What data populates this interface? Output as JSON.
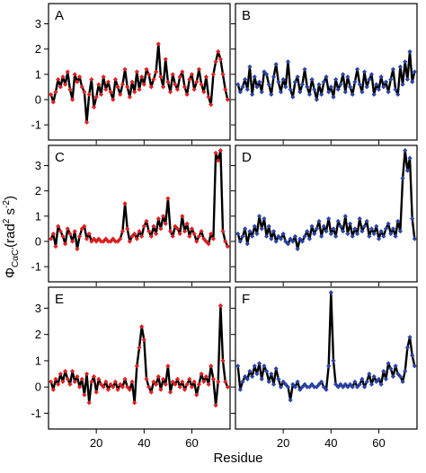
{
  "chart_data": [
    {
      "panel": "A",
      "type": "line",
      "xlabel": "Residue",
      "ylabel": "Φ",
      "ylabel_sub": "CαC′",
      "ylabel_unit_prefix": "(rad",
      "ylabel_unit_exp1": "2",
      "ylabel_unit_mid": " s",
      "ylabel_unit_exp2": "-2",
      "ylabel_unit_suffix": ")",
      "xlim": [
        0,
        76
      ],
      "ylim": [
        -1.6,
        3.8
      ],
      "xticks": [
        20,
        40,
        60
      ],
      "yticks": [
        -1,
        0,
        1,
        2,
        3
      ],
      "marker_color": "#e02020",
      "line_color": "#000000",
      "x": [
        1,
        2,
        3,
        4,
        5,
        6,
        7,
        8,
        9,
        10,
        11,
        12,
        13,
        14,
        15,
        16,
        17,
        18,
        19,
        20,
        21,
        22,
        23,
        24,
        25,
        26,
        27,
        28,
        29,
        30,
        31,
        32,
        33,
        34,
        35,
        36,
        37,
        38,
        39,
        40,
        41,
        42,
        43,
        44,
        45,
        46,
        47,
        48,
        49,
        50,
        51,
        52,
        53,
        54,
        55,
        56,
        57,
        58,
        59,
        60,
        61,
        62,
        63,
        64,
        65,
        66,
        67,
        68,
        69,
        70,
        71,
        72,
        73,
        74,
        75
      ],
      "y": [
        0.2,
        -0.1,
        0.3,
        0.8,
        0.5,
        0.9,
        0.6,
        1.1,
        0.4,
        0.0,
        1.0,
        0.7,
        0.9,
        0.5,
        0.3,
        -0.9,
        0.2,
        0.8,
        -0.3,
        0.1,
        0.6,
        0.2,
        0.9,
        0.4,
        0.7,
        0.3,
        0.0,
        0.8,
        0.5,
        0.2,
        0.6,
        1.2,
        0.5,
        0.1,
        0.7,
        0.3,
        1.1,
        0.4,
        0.9,
        0.6,
        1.2,
        1.0,
        0.5,
        0.8,
        1.1,
        2.2,
        0.9,
        0.5,
        1.6,
        0.7,
        0.3,
        1.0,
        0.6,
        0.4,
        0.9,
        1.1,
        0.5,
        0.2,
        0.8,
        1.0,
        0.4,
        0.7,
        1.2,
        0.6,
        0.3,
        0.9,
        0.1,
        -0.2,
        1.0,
        1.5,
        1.9,
        1.6,
        1.0,
        0.4,
        0.0
      ]
    },
    {
      "panel": "B",
      "type": "line",
      "xlim": [
        0,
        76
      ],
      "ylim": [
        -1.6,
        3.8
      ],
      "xticks": [
        20,
        40,
        60
      ],
      "yticks": [
        -1,
        0,
        1,
        2,
        3
      ],
      "marker_color": "#2a44a8",
      "line_color": "#000000",
      "x": [
        1,
        2,
        3,
        4,
        5,
        6,
        7,
        8,
        9,
        10,
        11,
        12,
        13,
        14,
        15,
        16,
        17,
        18,
        19,
        20,
        21,
        22,
        23,
        24,
        25,
        26,
        27,
        28,
        29,
        30,
        31,
        32,
        33,
        34,
        35,
        36,
        37,
        38,
        39,
        40,
        41,
        42,
        43,
        44,
        45,
        46,
        47,
        48,
        49,
        50,
        51,
        52,
        53,
        54,
        55,
        56,
        57,
        58,
        59,
        60,
        61,
        62,
        63,
        64,
        65,
        66,
        67,
        68,
        69,
        70,
        71,
        72,
        73,
        74,
        75
      ],
      "y": [
        0.6,
        0.3,
        0.5,
        0.8,
        0.4,
        1.3,
        0.2,
        0.9,
        0.5,
        0.7,
        0.3,
        1.1,
        1.0,
        0.6,
        0.2,
        0.9,
        1.4,
        0.7,
        0.3,
        0.8,
        0.5,
        1.5,
        0.4,
        0.1,
        0.7,
        0.9,
        0.3,
        0.6,
        1.2,
        0.5,
        0.2,
        0.8,
        0.4,
        0.0,
        0.6,
        0.2,
        0.7,
        0.9,
        0.3,
        0.5,
        0.1,
        0.8,
        0.4,
        0.6,
        1.0,
        0.3,
        0.9,
        0.5,
        0.2,
        0.7,
        1.2,
        0.6,
        0.3,
        1.1,
        0.5,
        0.8,
        1.0,
        0.2,
        0.6,
        0.4,
        0.9,
        0.5,
        0.7,
        0.3,
        0.8,
        1.2,
        0.4,
        0.2,
        1.3,
        0.6,
        1.5,
        0.8,
        1.9,
        0.7,
        1.1
      ]
    },
    {
      "panel": "C",
      "type": "line",
      "xlim": [
        0,
        76
      ],
      "ylim": [
        -1.6,
        3.8
      ],
      "xticks": [
        20,
        40,
        60
      ],
      "yticks": [
        -1,
        0,
        1,
        2,
        3
      ],
      "marker_color": "#e02020",
      "line_color": "#000000",
      "x": [
        1,
        2,
        3,
        4,
        5,
        6,
        7,
        8,
        9,
        10,
        11,
        12,
        13,
        14,
        15,
        16,
        17,
        18,
        19,
        20,
        21,
        22,
        23,
        24,
        25,
        26,
        27,
        28,
        29,
        30,
        31,
        32,
        33,
        34,
        35,
        36,
        37,
        38,
        39,
        40,
        41,
        42,
        43,
        44,
        45,
        46,
        47,
        48,
        49,
        50,
        51,
        52,
        53,
        54,
        55,
        56,
        57,
        58,
        59,
        60,
        61,
        62,
        63,
        64,
        65,
        66,
        67,
        68,
        69,
        70,
        71,
        72,
        73,
        74,
        75
      ],
      "y": [
        0.1,
        0.3,
        -0.2,
        0.6,
        0.4,
        0.2,
        -0.1,
        0.5,
        0.3,
        0.0,
        0.4,
        -0.3,
        0.2,
        0.5,
        0.6,
        0.1,
        0.3,
        0.0,
        0.1,
        0.0,
        0.1,
        0.0,
        0.0,
        0.1,
        0.0,
        0.0,
        0.1,
        0.0,
        0.0,
        0.1,
        0.4,
        1.5,
        0.5,
        0.0,
        0.2,
        0.3,
        0.1,
        0.4,
        0.2,
        0.6,
        0.8,
        0.4,
        0.2,
        0.6,
        0.3,
        0.9,
        0.5,
        1.0,
        0.7,
        1.7,
        0.4,
        0.2,
        0.6,
        0.5,
        0.3,
        1.0,
        0.4,
        0.7,
        0.2,
        0.5,
        0.3,
        0.0,
        0.2,
        0.4,
        0.1,
        0.0,
        -0.1,
        0.3,
        0.1,
        3.5,
        3.2,
        3.6,
        0.4,
        0.0,
        -0.2
      ]
    },
    {
      "panel": "D",
      "type": "line",
      "xlim": [
        0,
        76
      ],
      "ylim": [
        -1.6,
        3.8
      ],
      "xticks": [
        20,
        40,
        60
      ],
      "yticks": [
        -1,
        0,
        1,
        2,
        3
      ],
      "marker_color": "#2a44a8",
      "line_color": "#000000",
      "x": [
        1,
        2,
        3,
        4,
        5,
        6,
        7,
        8,
        9,
        10,
        11,
        12,
        13,
        14,
        15,
        16,
        17,
        18,
        19,
        20,
        21,
        22,
        23,
        24,
        25,
        26,
        27,
        28,
        29,
        30,
        31,
        32,
        33,
        34,
        35,
        36,
        37,
        38,
        39,
        40,
        41,
        42,
        43,
        44,
        45,
        46,
        47,
        48,
        49,
        50,
        51,
        52,
        53,
        54,
        55,
        56,
        57,
        58,
        59,
        60,
        61,
        62,
        63,
        64,
        65,
        66,
        67,
        68,
        69,
        70,
        71,
        72,
        73,
        74,
        75
      ],
      "y": [
        0.3,
        0.0,
        0.2,
        0.5,
        -0.1,
        0.4,
        0.2,
        0.6,
        0.3,
        1.0,
        0.5,
        0.9,
        0.2,
        0.6,
        0.1,
        0.4,
        0.0,
        0.2,
        0.1,
        0.3,
        0.0,
        -0.1,
        0.1,
        0.0,
        0.2,
        -0.3,
        0.1,
        0.0,
        0.2,
        0.4,
        0.1,
        0.6,
        0.3,
        0.5,
        0.8,
        0.2,
        0.6,
        0.4,
        0.9,
        0.3,
        0.5,
        0.2,
        0.8,
        0.6,
        0.4,
        1.0,
        0.3,
        0.7,
        0.2,
        0.5,
        0.3,
        0.9,
        0.4,
        0.6,
        0.8,
        0.2,
        0.5,
        0.3,
        0.6,
        0.1,
        0.4,
        0.2,
        0.5,
        0.7,
        0.3,
        0.5,
        0.2,
        0.8,
        0.4,
        2.5,
        3.6,
        2.8,
        3.3,
        0.9,
        0.1
      ]
    },
    {
      "panel": "E",
      "type": "line",
      "xlim": [
        0,
        76
      ],
      "ylim": [
        -1.6,
        3.8
      ],
      "xticks": [
        20,
        40,
        60
      ],
      "yticks": [
        -1,
        0,
        1,
        2,
        3
      ],
      "marker_color": "#e02020",
      "line_color": "#000000",
      "x": [
        1,
        2,
        3,
        4,
        5,
        6,
        7,
        8,
        9,
        10,
        11,
        12,
        13,
        14,
        15,
        16,
        17,
        18,
        19,
        20,
        21,
        22,
        23,
        24,
        25,
        26,
        27,
        28,
        29,
        30,
        31,
        32,
        33,
        34,
        35,
        36,
        37,
        38,
        39,
        40,
        41,
        42,
        43,
        44,
        45,
        46,
        47,
        48,
        49,
        50,
        51,
        52,
        53,
        54,
        55,
        56,
        57,
        58,
        59,
        60,
        61,
        62,
        63,
        64,
        65,
        66,
        67,
        68,
        69,
        70,
        71,
        72,
        73,
        74,
        75
      ],
      "y": [
        0.2,
        -0.1,
        0.3,
        0.1,
        0.5,
        0.2,
        0.6,
        0.3,
        0.1,
        0.6,
        0.2,
        0.4,
        0.0,
        0.3,
        -0.3,
        0.5,
        -0.6,
        0.2,
        0.4,
        -0.2,
        0.3,
        0.1,
        0.0,
        0.2,
        -0.1,
        0.1,
        0.0,
        0.2,
        -0.1,
        0.1,
        0.0,
        0.3,
        0.0,
        -0.1,
        0.2,
        -0.6,
        0.8,
        1.5,
        2.3,
        1.8,
        0.3,
        0.0,
        -0.2,
        0.2,
        0.1,
        0.4,
        -0.1,
        0.3,
        0.1,
        0.8,
        -0.2,
        0.2,
        0.1,
        0.3,
        0.0,
        0.2,
        -0.1,
        0.1,
        0.3,
        0.0,
        0.2,
        -0.3,
        0.1,
        0.5,
        0.2,
        0.4,
        0.1,
        0.8,
        0.3,
        -0.7,
        0.2,
        3.1,
        1.0,
        0.2,
        0.0
      ]
    },
    {
      "panel": "F",
      "type": "line",
      "xlim": [
        0,
        76
      ],
      "ylim": [
        -1.6,
        3.8
      ],
      "xticks": [
        20,
        40,
        60
      ],
      "yticks": [
        -1,
        0,
        1,
        2,
        3
      ],
      "marker_color": "#2a44a8",
      "line_color": "#000000",
      "x": [
        1,
        2,
        3,
        4,
        5,
        6,
        7,
        8,
        9,
        10,
        11,
        12,
        13,
        14,
        15,
        16,
        17,
        18,
        19,
        20,
        21,
        22,
        23,
        24,
        25,
        26,
        27,
        28,
        29,
        30,
        31,
        32,
        33,
        34,
        35,
        36,
        37,
        38,
        39,
        40,
        41,
        42,
        43,
        44,
        45,
        46,
        47,
        48,
        49,
        50,
        51,
        52,
        53,
        54,
        55,
        56,
        57,
        58,
        59,
        60,
        61,
        62,
        63,
        64,
        65,
        66,
        67,
        68,
        69,
        70,
        71,
        72,
        73,
        74,
        75
      ],
      "y": [
        0.8,
        -0.1,
        0.2,
        0.4,
        0.3,
        0.6,
        0.4,
        0.8,
        0.5,
        0.9,
        0.3,
        0.8,
        0.6,
        0.2,
        0.5,
        0.1,
        0.7,
        0.3,
        0.0,
        0.2,
        0.1,
        0.0,
        -0.5,
        0.1,
        0.0,
        0.2,
        -0.1,
        0.0,
        0.1,
        0.0,
        0.0,
        0.1,
        0.0,
        0.0,
        0.1,
        0.2,
        0.0,
        -0.1,
        0.8,
        3.6,
        1.0,
        0.1,
        0.0,
        0.1,
        0.0,
        0.1,
        0.0,
        0.1,
        0.0,
        0.2,
        0.0,
        0.1,
        0.3,
        0.0,
        0.2,
        0.5,
        0.1,
        0.4,
        0.2,
        0.3,
        0.1,
        0.6,
        0.3,
        0.9,
        0.7,
        0.4,
        0.8,
        0.5,
        0.4,
        0.2,
        0.6,
        1.5,
        1.9,
        1.2,
        0.8
      ]
    }
  ]
}
